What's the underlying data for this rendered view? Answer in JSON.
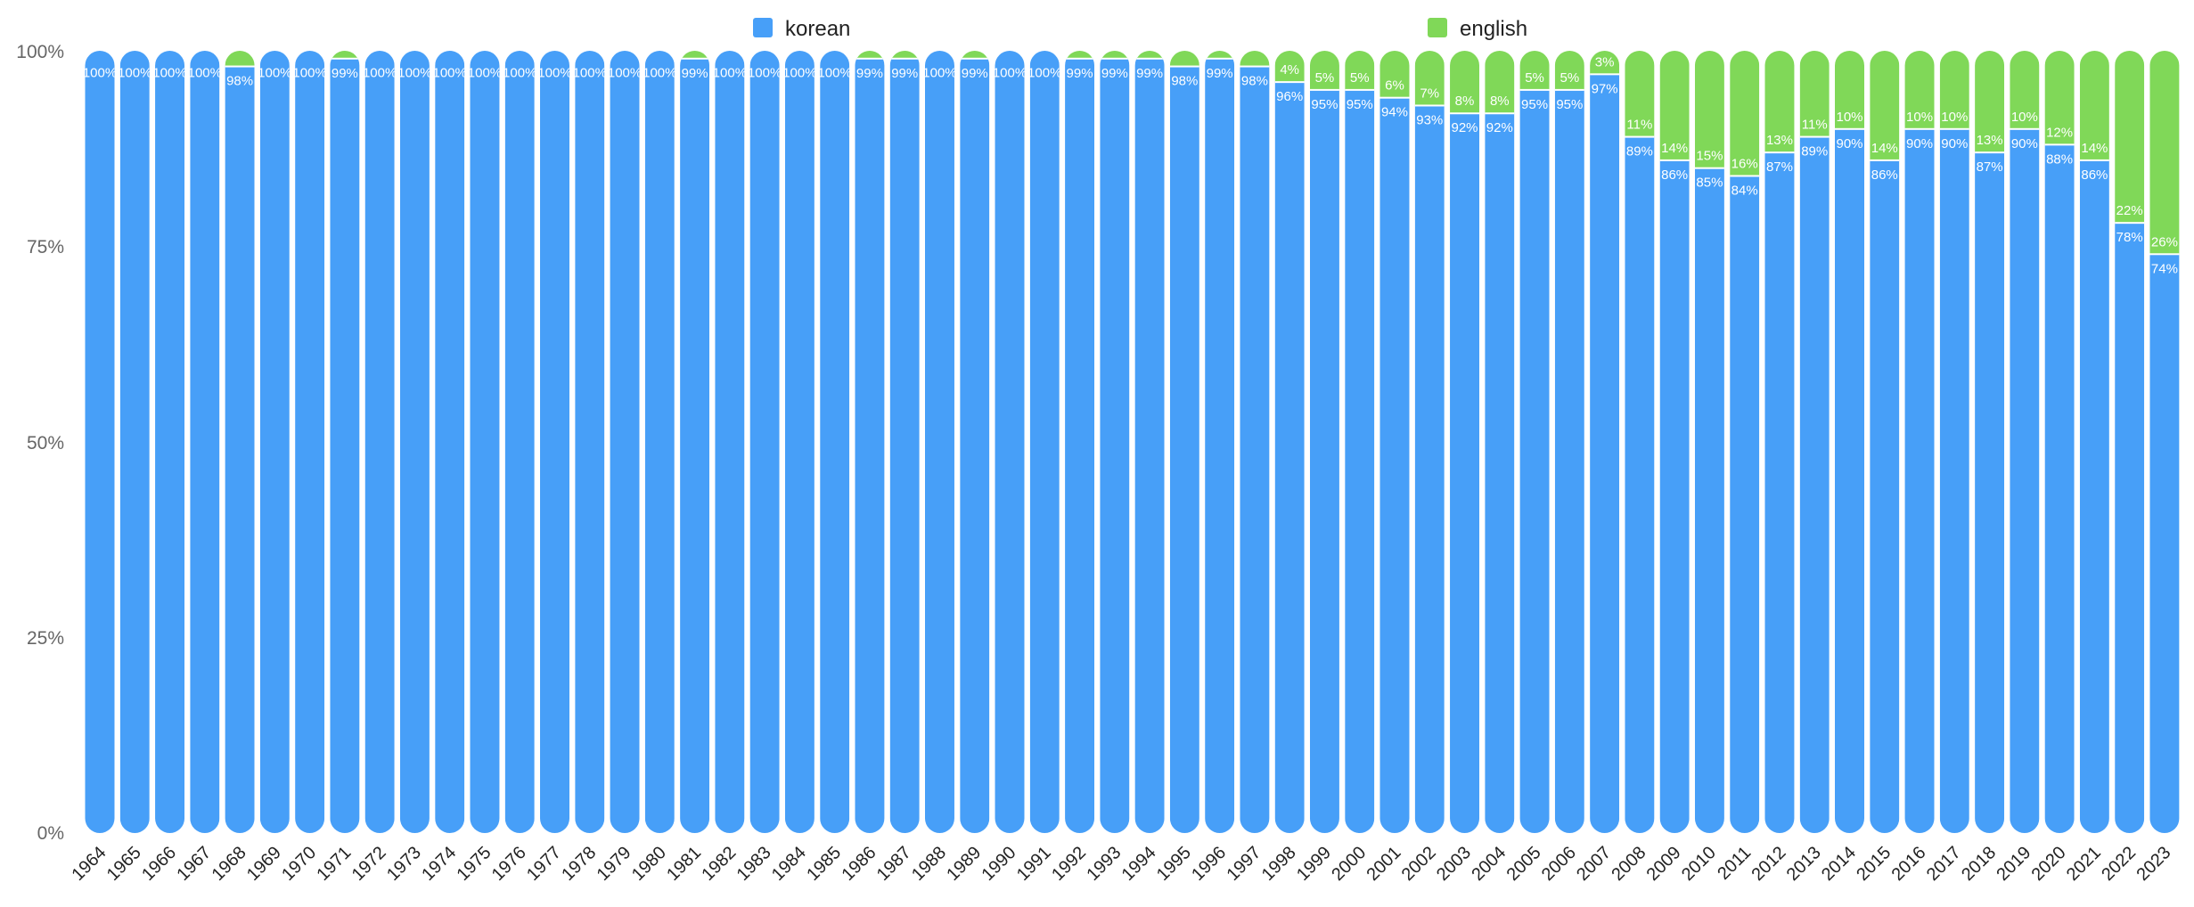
{
  "chart_data": {
    "type": "bar",
    "stacked": true,
    "normalized": true,
    "title": "",
    "xlabel": "",
    "ylabel": "",
    "ylim": [
      0,
      100
    ],
    "yticks": [
      "0%",
      "25%",
      "50%",
      "75%",
      "100%"
    ],
    "legend_position": "top",
    "colors": {
      "korean": "#479ff8",
      "english": "#80d858"
    },
    "categories": [
      "1964",
      "1965",
      "1966",
      "1967",
      "1968",
      "1969",
      "1970",
      "1971",
      "1972",
      "1973",
      "1974",
      "1975",
      "1976",
      "1977",
      "1978",
      "1979",
      "1980",
      "1981",
      "1982",
      "1983",
      "1984",
      "1985",
      "1986",
      "1987",
      "1988",
      "1989",
      "1990",
      "1991",
      "1992",
      "1993",
      "1994",
      "1995",
      "1996",
      "1997",
      "1998",
      "1999",
      "2000",
      "2001",
      "2002",
      "2003",
      "2004",
      "2005",
      "2006",
      "2007",
      "2008",
      "2009",
      "2010",
      "2011",
      "2012",
      "2013",
      "2014",
      "2015",
      "2016",
      "2017",
      "2018",
      "2019",
      "2020",
      "2021",
      "2022",
      "2023"
    ],
    "series": [
      {
        "name": "korean",
        "values": [
          100,
          100,
          100,
          100,
          98,
          100,
          100,
          99,
          100,
          100,
          100,
          100,
          100,
          100,
          100,
          100,
          100,
          99,
          100,
          100,
          100,
          100,
          99,
          99,
          100,
          99,
          100,
          100,
          99,
          99,
          99,
          98,
          99,
          98,
          96,
          95,
          95,
          94,
          93,
          92,
          92,
          95,
          95,
          97,
          89,
          86,
          85,
          84,
          87,
          89,
          90,
          86,
          90,
          90,
          87,
          90,
          88,
          86,
          78,
          74
        ],
        "labels": [
          "100%",
          "100%",
          "100%",
          "100%",
          "98%",
          "100%",
          "100%",
          "99%",
          "100%",
          "100%",
          "100%",
          "100%",
          "100%",
          "100%",
          "100%",
          "100%",
          "100%",
          "99%",
          "100%",
          "100%",
          "100%",
          "100%",
          "99%",
          "99%",
          "100%",
          "99%",
          "100%",
          "100%",
          "99%",
          "99%",
          "99%",
          "98%",
          "99%",
          "98%",
          "96%",
          "95%",
          "95%",
          "94%",
          "93%",
          "92%",
          "92%",
          "95%",
          "95%",
          "97%",
          "89%",
          "86%",
          "85%",
          "84%",
          "87%",
          "89%",
          "90%",
          "86%",
          "90%",
          "90%",
          "87%",
          "90%",
          "88%",
          "86%",
          "78%",
          "74%"
        ]
      },
      {
        "name": "english",
        "values": [
          0,
          0,
          0,
          0,
          2,
          0,
          0,
          1,
          0,
          0,
          0,
          0,
          0,
          0,
          0,
          0,
          0,
          1,
          0,
          0,
          0,
          0,
          1,
          1,
          0,
          1,
          0,
          0,
          1,
          1,
          1,
          2,
          1,
          2,
          4,
          5,
          5,
          6,
          7,
          8,
          8,
          5,
          5,
          3,
          11,
          14,
          15,
          16,
          13,
          11,
          10,
          14,
          10,
          10,
          13,
          10,
          12,
          14,
          22,
          26
        ],
        "labels": [
          "",
          "",
          "",
          "",
          "",
          "",
          "",
          "",
          "",
          "",
          "",
          "",
          "",
          "",
          "",
          "",
          "",
          "",
          "",
          "",
          "",
          "",
          "",
          "",
          "",
          "",
          "",
          "",
          "",
          "",
          "",
          "",
          "",
          "",
          "4%",
          "5%",
          "5%",
          "6%",
          "7%",
          "8%",
          "8%",
          "5%",
          "5%",
          "3%",
          "11%",
          "14%",
          "15%",
          "16%",
          "13%",
          "11%",
          "10%",
          "14%",
          "10%",
          "10%",
          "13%",
          "10%",
          "12%",
          "14%",
          "22%",
          "26%"
        ]
      }
    ]
  }
}
